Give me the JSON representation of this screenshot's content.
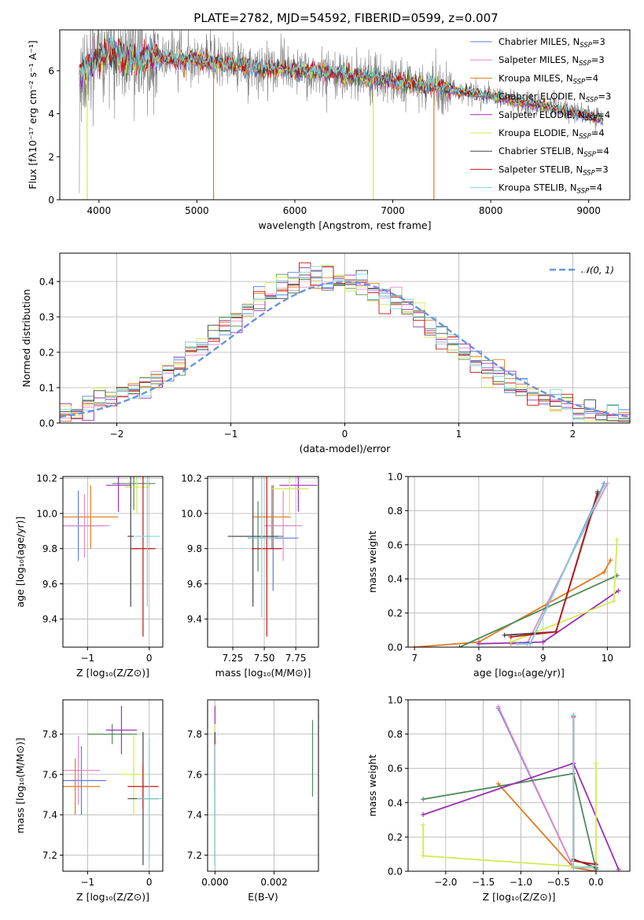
{
  "colors": {
    "Chabrier MILES": "#5b7fd9",
    "Salpeter MILES": "#e58ac4",
    "Kroupa MILES": "#e07b1f",
    "Chabrier ELODIE": "#4f8a5b",
    "Salpeter ELODIE": "#9b2fb5",
    "Kroupa ELODIE": "#d4ea52",
    "Chabrier STELIB": "#444444",
    "Salpeter STELIB": "#c41414",
    "Kroupa STELIB": "#7ed3d9",
    "normal": "#6b94d6",
    "data": "#808080"
  },
  "chart_data": [
    {
      "type": "line",
      "title": "PLATE=2782, MJD=54592, FIBERID=0599, z=0.007",
      "xlabel": "wavelength [Angstrom, rest frame]",
      "ylabel": "Flux [fλ10⁻¹⁷ erg cm⁻² s⁻¹ A⁻¹]",
      "xlim": [
        3600,
        9420
      ],
      "ylim": [
        0,
        7.9
      ],
      "xticks": [
        "4000",
        "5000",
        "6000",
        "7000",
        "8000",
        "9000"
      ],
      "yticks": [
        "0",
        "2",
        "4",
        "6"
      ],
      "grid": false,
      "legend_position": "top-right",
      "legend": [
        {
          "label": "Chabrier MILES, N",
          "sub": "SSP",
          "suffix": "=3"
        },
        {
          "label": "Salpeter MILES, N",
          "sub": "SSP",
          "suffix": "=3"
        },
        {
          "label": "Kroupa MILES, N",
          "sub": "SSP",
          "suffix": "=4"
        },
        {
          "label": "Chabrier ELODIE, N",
          "sub": "SSP",
          "suffix": "=3"
        },
        {
          "label": "Salpeter ELODIE, N",
          "sub": "SSP",
          "suffix": "=4"
        },
        {
          "label": "Kroupa ELODIE, N",
          "sub": "SSP",
          "suffix": "=4"
        },
        {
          "label": "Chabrier STELIB, N",
          "sub": "SSP",
          "suffix": "=4"
        },
        {
          "label": "Salpeter STELIB, N",
          "sub": "SSP",
          "suffix": "=3"
        },
        {
          "label": "Kroupa STELIB, N",
          "sub": "SSP",
          "suffix": "=4"
        }
      ],
      "continuum": {
        "x": [
          3800,
          3900,
          4000,
          4100,
          4300,
          4600,
          5000,
          5500,
          6000,
          6500,
          7000,
          7500,
          8000,
          8500,
          9000,
          9150
        ],
        "y": [
          5.8,
          6.2,
          6.6,
          6.9,
          6.5,
          6.6,
          6.5,
          6.2,
          6.0,
          5.8,
          5.5,
          5.2,
          4.8,
          4.4,
          3.9,
          3.7
        ]
      },
      "model_dropouts": [
        {
          "model": "Kroupa MILES",
          "x": 5170
        },
        {
          "model": "Kroupa MILES",
          "x": 7420
        },
        {
          "model": "Kroupa ELODIE",
          "x": 6800
        },
        {
          "model": "Kroupa ELODIE",
          "x": 3880
        }
      ]
    },
    {
      "type": "line",
      "xlabel": "(data-model)/error",
      "ylabel": "Normed distribution",
      "xlim": [
        -2.5,
        2.5
      ],
      "ylim": [
        0,
        0.48
      ],
      "xticks": [
        -2,
        -1,
        0,
        1,
        2
      ],
      "yticks": [
        0.0,
        0.1,
        0.2,
        0.3,
        0.4
      ],
      "xtick_labels": [
        "−2",
        "−1",
        "0",
        "1",
        "2"
      ],
      "ytick_labels": [
        "0.0",
        "0.1",
        "0.2",
        "0.3",
        "0.4"
      ],
      "grid": true,
      "legend": [
        {
          "label": "𝒩(0, 1)"
        }
      ],
      "bin_width": 0.1,
      "bin_start": -2.5,
      "normal_mean": 0,
      "normal_sigma": 1
    },
    {
      "type": "scatter",
      "xlabel": "Z [log₁₀(Z/Z⊙)]",
      "ylabel": "age  [log₁₀(age/yr)]",
      "xlim": [
        -1.4,
        0.22
      ],
      "ylim": [
        9.24,
        10.21
      ],
      "xticks": [
        "−1",
        "0"
      ],
      "yticks": [
        "9.4",
        "9.6",
        "9.8",
        "10.0",
        "10.2"
      ],
      "grid": true,
      "points": [
        {
          "model": "Chabrier MILES",
          "x": -1.15,
          "y": 9.93,
          "xerr": 0.4,
          "yerr": 0.2
        },
        {
          "model": "Salpeter MILES",
          "x": -1.05,
          "y": 9.93,
          "xerr": 0.4,
          "yerr": 0.18
        },
        {
          "model": "Kroupa MILES",
          "x": -0.95,
          "y": 9.98,
          "xerr": 0.45,
          "yerr": 0.18
        },
        {
          "model": "Chabrier ELODIE",
          "x": -0.25,
          "y": 10.17,
          "xerr": 0.35,
          "yerr": 0.15
        },
        {
          "model": "Salpeter ELODIE",
          "x": -0.5,
          "y": 10.16,
          "xerr": 0.2,
          "yerr": 0.15
        },
        {
          "model": "Kroupa ELODIE",
          "x": -0.2,
          "y": 10.15,
          "xerr": 0.2,
          "yerr": 0.15
        },
        {
          "model": "Chabrier STELIB",
          "x": -0.3,
          "y": 9.87,
          "xerr": 0.05,
          "yerr": 0.4
        },
        {
          "model": "Salpeter STELIB",
          "x": -0.1,
          "y": 9.8,
          "xerr": 0.2,
          "yerr": 0.5
        },
        {
          "model": "Kroupa STELIB",
          "x": -0.03,
          "y": 9.87,
          "xerr": 0.2,
          "yerr": 0.4
        }
      ]
    },
    {
      "type": "scatter",
      "xlabel": "mass [log₁₀(M/M⊙)]",
      "ylabel": "",
      "xlim": [
        7.05,
        7.93
      ],
      "ylim": [
        9.24,
        10.21
      ],
      "xticks": [
        "7.25",
        "7.50",
        "7.75"
      ],
      "yticks": [
        "9.4",
        "9.6",
        "9.8",
        "10.0",
        "10.2"
      ],
      "grid": true,
      "points": [
        {
          "model": "Chabrier MILES",
          "x": 7.57,
          "y": 9.86,
          "xerr": 0.2,
          "yerr": 0.3
        },
        {
          "model": "Salpeter MILES",
          "x": 7.65,
          "y": 9.93,
          "xerr": 0.15,
          "yerr": 0.2
        },
        {
          "model": "Kroupa MILES",
          "x": 7.56,
          "y": 9.98,
          "xerr": 0.15,
          "yerr": 0.18
        },
        {
          "model": "Chabrier ELODIE",
          "x": 7.45,
          "y": 9.87,
          "xerr": 0.2,
          "yerr": 0.2
        },
        {
          "model": "Salpeter ELODIE",
          "x": 7.77,
          "y": 10.16,
          "xerr": 0.15,
          "yerr": 0.15
        },
        {
          "model": "Kroupa ELODIE",
          "x": 7.7,
          "y": 10.14,
          "xerr": 0.15,
          "yerr": 0.15
        },
        {
          "model": "Chabrier STELIB",
          "x": 7.41,
          "y": 9.87,
          "xerr": 0.2,
          "yerr": 0.4
        },
        {
          "model": "Salpeter STELIB",
          "x": 7.52,
          "y": 9.8,
          "xerr": 0.12,
          "yerr": 0.5
        },
        {
          "model": "Kroupa STELIB",
          "x": 7.48,
          "y": 9.86,
          "xerr": 0.1,
          "yerr": 0.45
        }
      ]
    },
    {
      "type": "line",
      "xlabel": "age  [log₁₀(age/yr)]",
      "ylabel": "mass weight",
      "xlim": [
        6.9,
        10.35
      ],
      "ylim": [
        0,
        1
      ],
      "xticks": [
        "7",
        "8",
        "9",
        "10"
      ],
      "yticks": [
        "0.0",
        "0.2",
        "0.4",
        "0.6",
        "0.8",
        "1.0"
      ],
      "grid": true,
      "series": [
        {
          "model": "Chabrier MILES",
          "x": [
            8.5,
            8.8,
            9.95
          ],
          "y": [
            0.02,
            0.02,
            0.96
          ]
        },
        {
          "model": "Salpeter MILES",
          "x": [
            8.5,
            8.75,
            10.0
          ],
          "y": [
            0.02,
            0.02,
            0.96
          ]
        },
        {
          "model": "Kroupa MILES",
          "x": [
            7.0,
            8.0,
            9.95,
            10.05
          ],
          "y": [
            0.0,
            0.03,
            0.44,
            0.51
          ]
        },
        {
          "model": "Chabrier ELODIE",
          "x": [
            7.7,
            10.15
          ],
          "y": [
            0.0,
            0.42
          ]
        },
        {
          "model": "Salpeter ELODIE",
          "x": [
            8.0,
            9.0,
            10.17
          ],
          "y": [
            0.02,
            0.03,
            0.33
          ]
        },
        {
          "model": "Kroupa ELODIE",
          "x": [
            8.5,
            10.1,
            10.15
          ],
          "y": [
            0.03,
            0.27,
            0.63
          ]
        },
        {
          "model": "Chabrier STELIB",
          "x": [
            8.4,
            9.2,
            9.85
          ],
          "y": [
            0.07,
            0.09,
            0.91
          ]
        },
        {
          "model": "Salpeter STELIB",
          "x": [
            8.5,
            9.2,
            9.85
          ],
          "y": [
            0.06,
            0.09,
            0.9
          ]
        },
        {
          "model": "Kroupa STELIB",
          "x": [
            8.6,
            8.8,
            9.95
          ],
          "y": [
            0.02,
            0.02,
            0.95
          ]
        }
      ]
    },
    {
      "type": "scatter",
      "xlabel": "Z [log₁₀(Z/Z⊙)]",
      "ylabel": "mass [log₁₀(M/M⊙)]",
      "xlim": [
        -1.4,
        0.22
      ],
      "ylim": [
        7.12,
        7.97
      ],
      "xticks": [
        "−1",
        "0"
      ],
      "yticks": [
        "7.2",
        "7.4",
        "7.6",
        "7.8"
      ],
      "grid": true,
      "points": [
        {
          "model": "Chabrier MILES",
          "x": -1.1,
          "y": 7.57,
          "xerr": 0.4,
          "yerr": 0.17
        },
        {
          "model": "Salpeter MILES",
          "x": -1.15,
          "y": 7.62,
          "xerr": 0.35,
          "yerr": 0.17
        },
        {
          "model": "Kroupa MILES",
          "x": -1.2,
          "y": 7.54,
          "xerr": 0.4,
          "yerr": 0.14
        },
        {
          "model": "Chabrier ELODIE",
          "x": -0.6,
          "y": 7.8,
          "xerr": 0.4,
          "yerr": 0.05
        },
        {
          "model": "Salpeter ELODIE",
          "x": -0.45,
          "y": 7.82,
          "xerr": 0.25,
          "yerr": 0.12
        },
        {
          "model": "Kroupa ELODIE",
          "x": -0.25,
          "y": 7.6,
          "xerr": 0.2,
          "yerr": 0.2
        },
        {
          "model": "Chabrier STELIB",
          "x": -0.1,
          "y": 7.48,
          "xerr": 0.25,
          "yerr": 0.33
        },
        {
          "model": "Salpeter STELIB",
          "x": -0.1,
          "y": 7.54,
          "xerr": 0.25,
          "yerr": 0.11
        },
        {
          "model": "Kroupa STELIB",
          "x": 0.0,
          "y": 7.48,
          "xerr": 0.2,
          "yerr": 0.3
        }
      ]
    },
    {
      "type": "scatter",
      "xlabel": "E(B-V)",
      "ylabel": "",
      "xlim": [
        -0.00025,
        0.0035
      ],
      "ylim": [
        7.12,
        7.97
      ],
      "xticks": [
        "0.000",
        "0.002"
      ],
      "yticks": [
        "7.2",
        "7.4",
        "7.6",
        "7.8"
      ],
      "grid": true,
      "points": [
        {
          "model": "Chabrier MILES",
          "x": 0.0,
          "y": 7.57,
          "yerr": 0.17
        },
        {
          "model": "Salpeter MILES",
          "x": 0.0,
          "y": 7.62,
          "yerr": 0.17
        },
        {
          "model": "Kroupa MILES",
          "x": 0.0,
          "y": 7.65,
          "yerr": 0.14
        },
        {
          "model": "Chabrier ELODIE",
          "x": 0.0033,
          "y": 7.68,
          "yerr": 0.19
        },
        {
          "model": "Salpeter ELODIE",
          "x": 0.0,
          "y": 7.82,
          "yerr": 0.12
        },
        {
          "model": "Kroupa ELODIE",
          "x": 0.0,
          "y": 7.7,
          "yerr": 0.15
        },
        {
          "model": "Chabrier STELIB",
          "x": 0.0,
          "y": 7.48,
          "yerr": 0.33
        },
        {
          "model": "Salpeter STELIB",
          "x": 0.0,
          "y": 7.65,
          "yerr": 0.11
        },
        {
          "model": "Kroupa STELIB",
          "x": 0.0,
          "y": 7.45,
          "yerr": 0.3
        }
      ]
    },
    {
      "type": "line",
      "xlabel": "Z [log₁₀(Z/Z⊙)]",
      "ylabel": "mass weight",
      "xlim": [
        -2.5,
        0.45
      ],
      "ylim": [
        0,
        1
      ],
      "xticks": [
        "−2.0",
        "−1.5",
        "−1.0",
        "−0.5",
        "0.0"
      ],
      "yticks": [
        "0.0",
        "0.2",
        "0.4",
        "0.6",
        "0.8",
        "1.0"
      ],
      "grid": true,
      "series": [
        {
          "model": "Chabrier MILES",
          "x": [
            -1.3,
            -0.3,
            0.0
          ],
          "y": [
            0.95,
            0.02,
            0.03
          ]
        },
        {
          "model": "Salpeter MILES",
          "x": [
            -1.3,
            -0.3,
            0.0
          ],
          "y": [
            0.96,
            0.02,
            0.02
          ]
        },
        {
          "model": "Kroupa MILES",
          "x": [
            -1.3,
            -0.3,
            0.0
          ],
          "y": [
            0.51,
            0.02,
            0.0
          ]
        },
        {
          "model": "Chabrier ELODIE",
          "x": [
            -2.3,
            -0.3,
            0.0
          ],
          "y": [
            0.42,
            0.57,
            0.01
          ]
        },
        {
          "model": "Salpeter ELODIE",
          "x": [
            -2.3,
            -0.3,
            0.3
          ],
          "y": [
            0.33,
            0.63,
            0.01
          ]
        },
        {
          "model": "Kroupa ELODIE",
          "x": [
            -2.3,
            -2.3,
            0.0,
            0.0
          ],
          "y": [
            0.27,
            0.09,
            0.02,
            0.63
          ]
        },
        {
          "model": "Chabrier STELIB",
          "x": [
            -0.3,
            -0.3,
            0.0
          ],
          "y": [
            0.91,
            0.07,
            0.02
          ]
        },
        {
          "model": "Salpeter STELIB",
          "x": [
            -0.3,
            -0.3,
            0.0
          ],
          "y": [
            0.9,
            0.06,
            0.04
          ]
        },
        {
          "model": "Kroupa STELIB",
          "x": [
            -0.3,
            -0.3,
            0.0
          ],
          "y": [
            0.91,
            0.02,
            0.03
          ]
        }
      ]
    }
  ]
}
